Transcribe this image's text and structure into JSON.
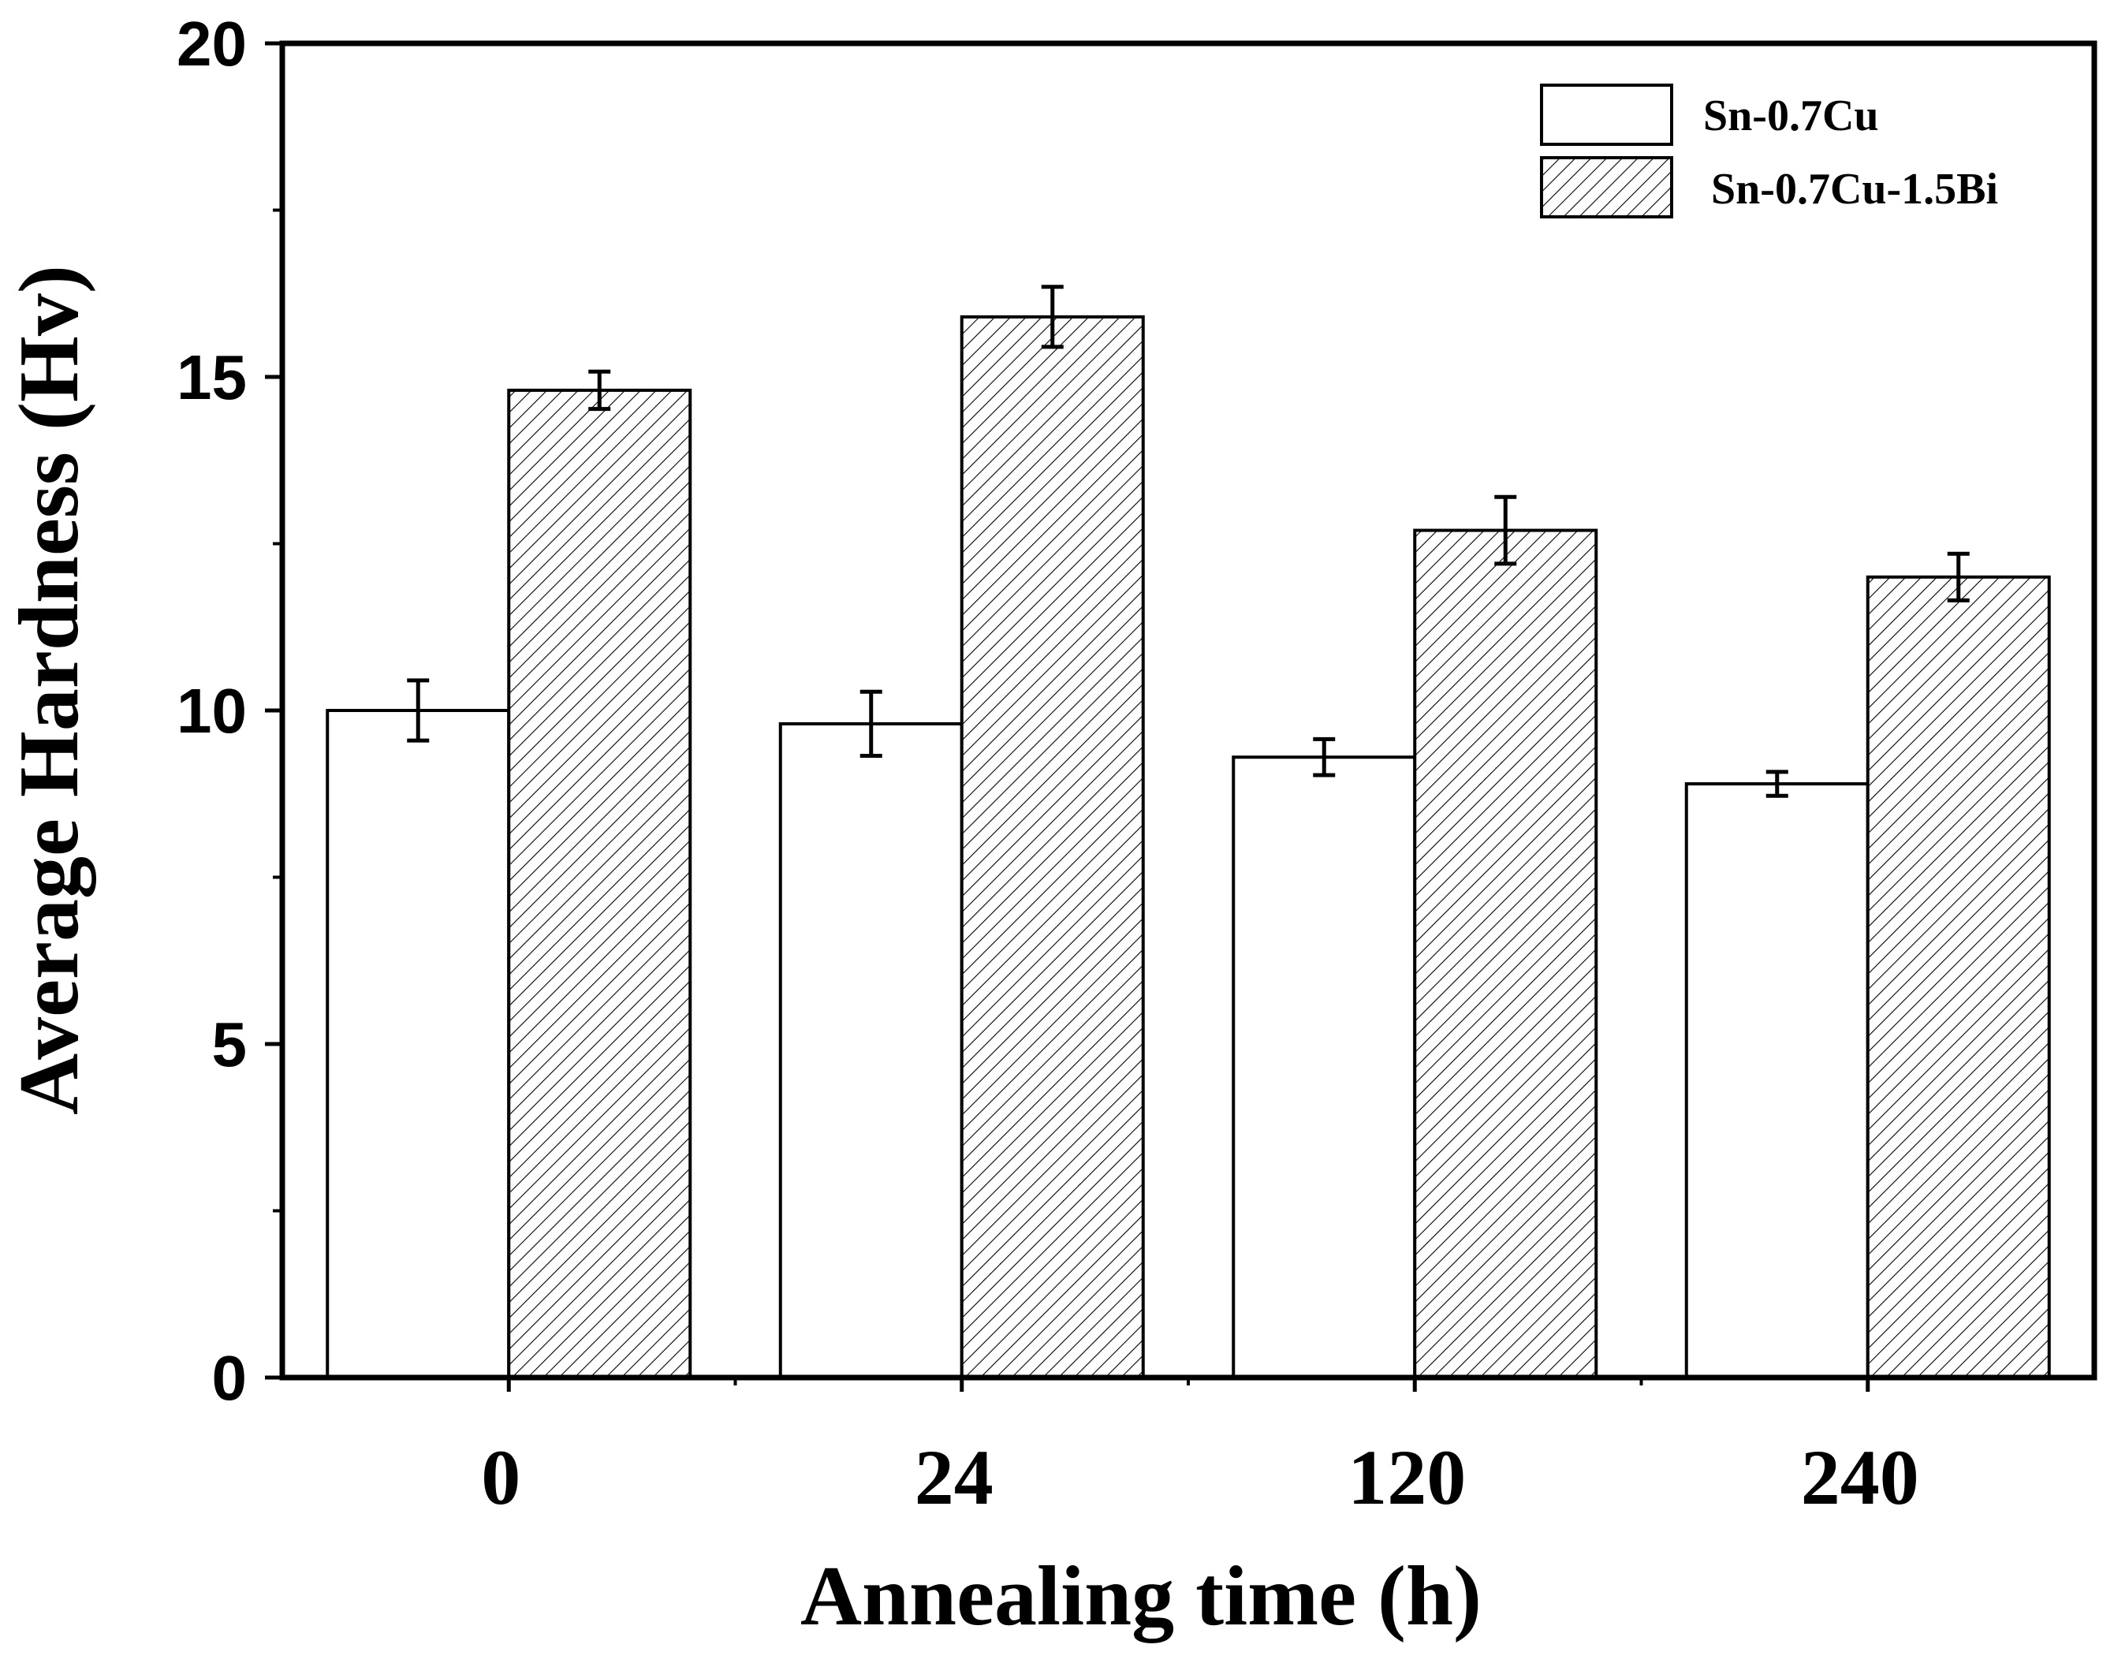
{
  "chart_data": {
    "type": "bar",
    "title": "",
    "xlabel": "Annealing time (h)",
    "ylabel": "Average Hardness (Hv)",
    "categories": [
      "0",
      "24",
      "120",
      "240"
    ],
    "ylim": [
      0,
      20
    ],
    "yticks": [
      0,
      5,
      10,
      15,
      20
    ],
    "yticks_labels": [
      "0",
      "5",
      "10",
      "15",
      "20"
    ],
    "minor_ytick_step": 2.5,
    "grid": false,
    "legend_position": "top-right",
    "series": [
      {
        "name": "Sn-0.7Cu",
        "fill": "none",
        "values": [
          10.0,
          9.8,
          9.3,
          8.9
        ],
        "errors": [
          0.45,
          0.48,
          0.27,
          0.18
        ]
      },
      {
        "name": "Sn-0.7Cu-1.5Bi",
        "fill": "hatch",
        "values": [
          14.8,
          15.9,
          12.7,
          12.0
        ],
        "errors": [
          0.28,
          0.45,
          0.5,
          0.35
        ]
      }
    ],
    "colors": {
      "axis": "#000000",
      "bar_fill": "#ffffff",
      "hatch": "#000000"
    }
  }
}
